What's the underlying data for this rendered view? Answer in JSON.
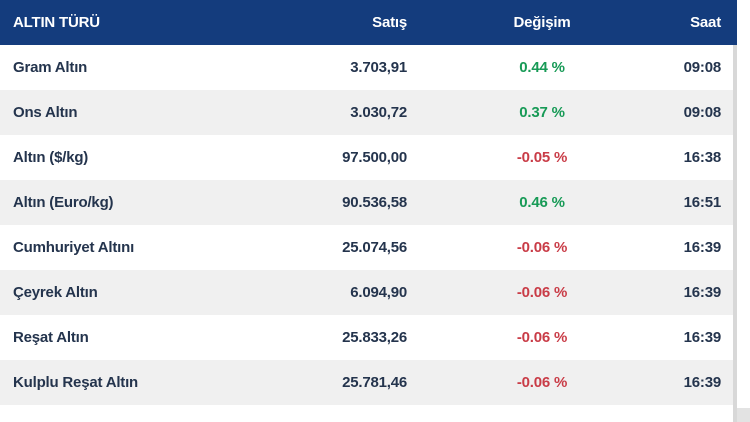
{
  "colors": {
    "header_bg": "#143C7D",
    "header_text": "#FFFFFF",
    "row_text": "#24344D",
    "positive_change": "#179A56",
    "negative_change": "#C93C47",
    "row_alt_bg": "#F0F0F0",
    "row_bg": "#FFFFFF",
    "scrollbar": "#D8D8D8"
  },
  "table": {
    "headers": {
      "type": "ALTIN TÜRÜ",
      "price": "Satış",
      "change": "Değişim",
      "time": "Saat"
    },
    "rows": [
      {
        "name": "Gram Altın",
        "price": "3.703,91",
        "change": "0.44 %",
        "direction": "up",
        "time": "09:08"
      },
      {
        "name": "Ons Altın",
        "price": "3.030,72",
        "change": "0.37 %",
        "direction": "up",
        "time": "09:08"
      },
      {
        "name": "Altın ($/kg)",
        "price": "97.500,00",
        "change": "-0.05 %",
        "direction": "down",
        "time": "16:38"
      },
      {
        "name": "Altın (Euro/kg)",
        "price": "90.536,58",
        "change": "0.46 %",
        "direction": "up",
        "time": "16:51"
      },
      {
        "name": "Cumhuriyet Altını",
        "price": "25.074,56",
        "change": "-0.06 %",
        "direction": "down",
        "time": "16:39"
      },
      {
        "name": "Çeyrek Altın",
        "price": "6.094,90",
        "change": "-0.06 %",
        "direction": "down",
        "time": "16:39"
      },
      {
        "name": "Reşat Altın",
        "price": "25.833,26",
        "change": "-0.06 %",
        "direction": "down",
        "time": "16:39"
      },
      {
        "name": "Kulplu Reşat Altın",
        "price": "25.781,46",
        "change": "-0.06 %",
        "direction": "down",
        "time": "16:39"
      }
    ]
  }
}
